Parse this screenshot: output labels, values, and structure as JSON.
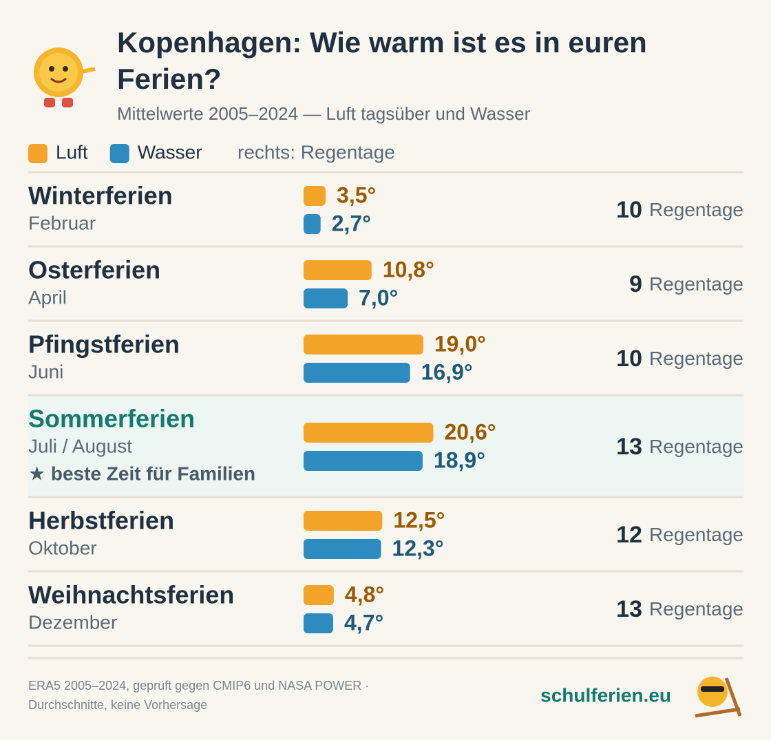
{
  "chart_data": {
    "type": "bar",
    "title": [
      "Kopenhagen: Wie warm ist es in euren",
      "Ferien?"
    ],
    "subtitle": "Mittelwerte 2005–2024 — Luft tagsüber und Wasser",
    "legend_note": "rechts: Regentage",
    "categories": [
      "Winterferien",
      "Osterferien",
      "Pfingstferien",
      "Sommerferien",
      "Herbstferien",
      "Weihnachtsferien"
    ],
    "months": [
      "Februar",
      "April",
      "Juni",
      "Juli / August",
      "Oktober",
      "Dezember"
    ],
    "notes": [
      null,
      null,
      null,
      "★ beste Zeit für Familien",
      null,
      null
    ],
    "series": [
      {
        "name": "Luft",
        "color": "#f5a42a",
        "label_color": "#9a5a00",
        "values": [
          3.5,
          10.8,
          19.0,
          20.6,
          12.5,
          4.8
        ],
        "value_labels": [
          "3,5°",
          "10,8°",
          "19,0°",
          "20,6°",
          "12,5°",
          "4,8°"
        ]
      },
      {
        "name": "Wasser",
        "color": "#2e8bc0",
        "label_color": "#1e5a7a",
        "values": [
          2.7,
          7.0,
          16.9,
          18.9,
          12.3,
          4.7
        ],
        "value_labels": [
          "2,7°",
          "7,0°",
          "16,9°",
          "18,9°",
          "12,3°",
          "4,7°"
        ]
      }
    ],
    "rain_days": [
      10,
      9,
      10,
      13,
      12,
      13
    ],
    "rain_label": "Regentage",
    "footer": {
      "source": [
        "ERA5 2005–2024, geprüft gegen CMIP6 und NASA POWER ·",
        "Durchschnitte, keine Vorhersage"
      ],
      "brand": "schulferien.eu"
    }
  }
}
